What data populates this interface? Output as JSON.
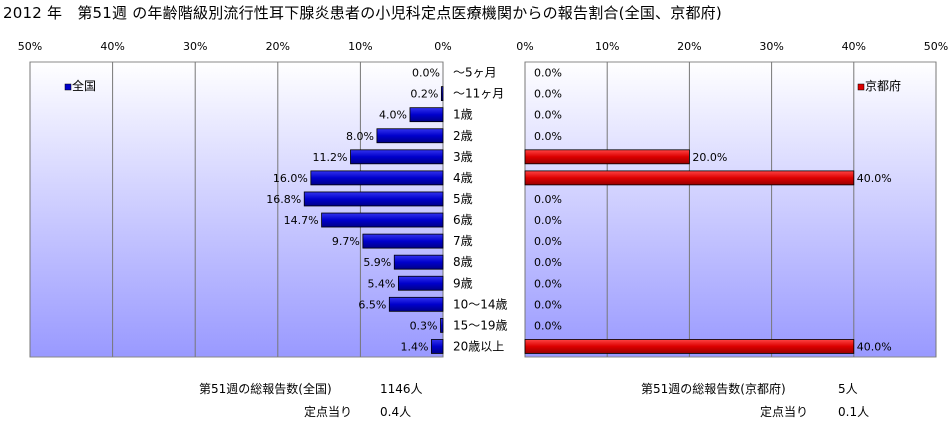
{
  "title": "2012 年　第51週 の年齢階級別流行性耳下腺炎患者の小児科定点医療機関からの報告割合(全国、京都府)",
  "chart_data": [
    {
      "type": "bar",
      "orientation": "horizontal",
      "direction": "right-to-left",
      "series": [
        {
          "name": "全国",
          "values": [
            0.0,
            0.2,
            4.0,
            8.0,
            11.2,
            16.0,
            16.8,
            14.7,
            9.7,
            5.9,
            5.4,
            6.5,
            0.3,
            1.4
          ]
        }
      ],
      "data_labels": [
        "0.0%",
        "0.2%",
        "4.0%",
        "8.0%",
        "11.2%",
        "16.0%",
        "16.8%",
        "14.7%",
        "9.7%",
        "5.9%",
        "5.4%",
        "6.5%",
        "0.3%",
        "1.4%"
      ],
      "x_ticks": [
        "50%",
        "40%",
        "30%",
        "20%",
        "10%",
        "0%"
      ],
      "xlim": [
        0,
        50
      ],
      "unit": "%",
      "bar_color": "#0000cc",
      "legend_position": "top-left"
    },
    {
      "type": "bar",
      "orientation": "horizontal",
      "direction": "left-to-right",
      "series": [
        {
          "name": "京都府",
          "values": [
            0,
            0,
            0,
            0,
            20.0,
            40.0,
            0,
            0,
            0,
            0,
            0,
            0,
            0,
            40.0
          ]
        }
      ],
      "data_labels": [
        "0.0%",
        "0.0%",
        "0.0%",
        "0.0%",
        "20.0%",
        "40.0%",
        "0.0%",
        "0.0%",
        "0.0%",
        "0.0%",
        "0.0%",
        "0.0%",
        "0.0%",
        "40.0%"
      ],
      "x_ticks": [
        "0%",
        "10%",
        "20%",
        "30%",
        "40%",
        "50%"
      ],
      "xlim": [
        0,
        50
      ],
      "unit": "%",
      "bar_color": "#dd0000",
      "legend_position": "top-right"
    }
  ],
  "categories": [
    "～5ヶ月",
    "～11ヶ月",
    "1歳",
    "2歳",
    "3歳",
    "4歳",
    "5歳",
    "6歳",
    "7歳",
    "8歳",
    "9歳",
    "10～14歳",
    "15～19歳",
    "20歳以上"
  ],
  "footer": {
    "national_total_label": "第51週の総報告数(全国)",
    "national_total_value": "1146人",
    "national_per_label": "定点当り",
    "national_per_value": "0.4人",
    "kyoto_total_label": "第51週の総報告数(京都府)",
    "kyoto_total_value": "5人",
    "kyoto_per_label": "定点当り",
    "kyoto_per_value": "0.1人"
  },
  "colors": {
    "plot_bg_top": "#ffffff",
    "plot_bg_bottom": "#9999ff"
  }
}
